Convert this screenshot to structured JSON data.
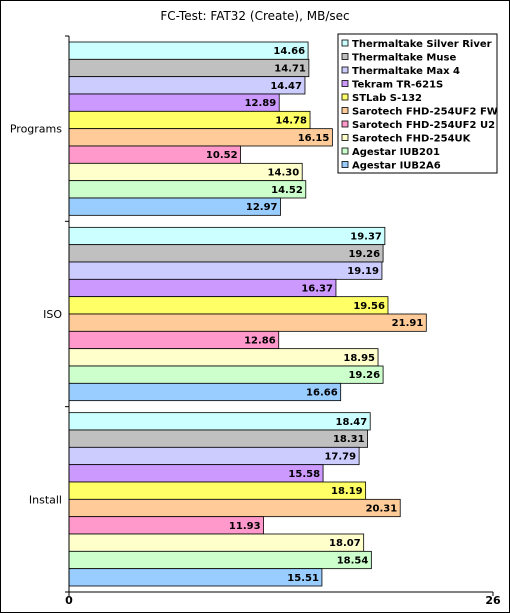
{
  "chart_data": {
    "type": "bar",
    "orientation": "horizontal",
    "title": "FC-Test: FAT32 (Create), MB/sec",
    "categories": [
      "Programs",
      "ISO",
      "Install"
    ],
    "xlim": [
      0,
      26
    ],
    "x_ticks": [
      "0",
      "26"
    ],
    "grid": false,
    "legend_position": "top-right",
    "series": [
      {
        "name": "Thermaltake Silver River",
        "color": "#ccffff",
        "values": [
          14.66,
          19.37,
          18.47
        ]
      },
      {
        "name": "Thermaltake Muse",
        "color": "#c0c0c0",
        "values": [
          14.71,
          19.26,
          18.31
        ]
      },
      {
        "name": "Thermaltake Max 4",
        "color": "#ccccff",
        "values": [
          14.47,
          19.19,
          17.79
        ]
      },
      {
        "name": "Tekram TR-621S",
        "color": "#cc99ff",
        "values": [
          12.89,
          16.37,
          15.58
        ]
      },
      {
        "name": "STLab S-132",
        "color": "#ffff66",
        "values": [
          14.78,
          19.56,
          18.19
        ]
      },
      {
        "name": "Sarotech FHD-254UF2 FW",
        "color": "#ffcc99",
        "values": [
          16.15,
          21.91,
          20.31
        ]
      },
      {
        "name": "Sarotech FHD-254UF2 U2",
        "color": "#ff99cc",
        "values": [
          10.52,
          12.86,
          11.93
        ]
      },
      {
        "name": "Sarotech FHD-254UK",
        "color": "#ffffcc",
        "values": [
          14.3,
          18.95,
          18.07
        ]
      },
      {
        "name": "Agestar IUB201",
        "color": "#ccffcc",
        "values": [
          14.52,
          19.26,
          18.54
        ]
      },
      {
        "name": "Agestar IUB2A6",
        "color": "#99ccff",
        "values": [
          12.97,
          16.66,
          15.51
        ]
      }
    ]
  }
}
